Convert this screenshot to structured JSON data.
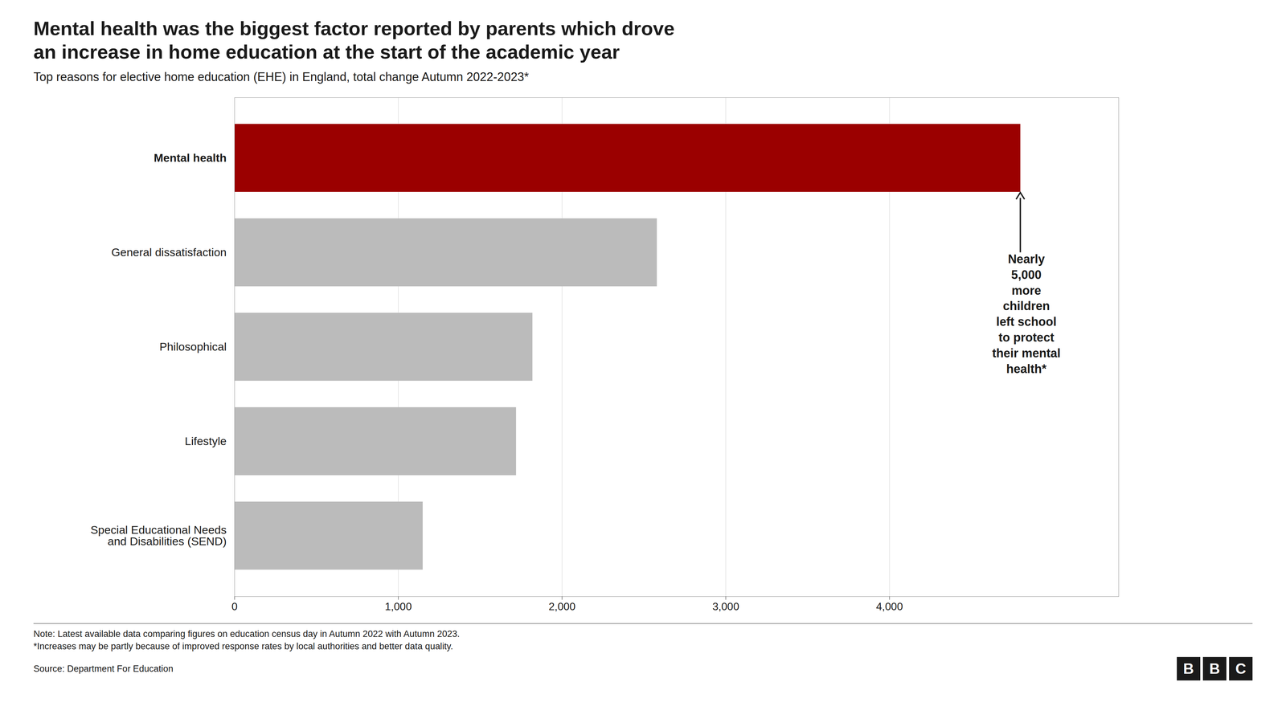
{
  "chart_data": {
    "type": "bar",
    "orientation": "horizontal",
    "title": "Mental health was the biggest factor reported by parents which drove\nan increase in home education at the start of the academic year",
    "subtitle": "Top reasons for elective home education (EHE) in England, total change Autumn 2022-2023*",
    "categories": [
      "Mental health",
      "General dissatisfaction",
      "Philosophical",
      "Lifestyle",
      "Special Educational Needs\nand Disabilities (SEND)"
    ],
    "values": [
      4800,
      2580,
      1820,
      1720,
      1150
    ],
    "colors": [
      "#9B0000",
      "#BBBBBB",
      "#BBBBBB",
      "#BBBBBB",
      "#BBBBBB"
    ],
    "xlim": [
      0,
      5400
    ],
    "xticks": [
      0,
      {
        "value": 1000,
        "label": "1,000"
      },
      {
        "value": 2000,
        "label": "2,000"
      },
      {
        "value": 3000,
        "label": "3,000"
      },
      {
        "value": 4000,
        "label": "4,000"
      }
    ],
    "grid": true,
    "annotations": [
      {
        "text": "Nearly\n5,000\nmore\nchildren\nleft school\nto protect\ntheir mental\nhealth*",
        "category": "Mental health"
      }
    ],
    "notes": [
      "Note: Latest available data comparing figures on education census day in Autumn 2022 with Autumn 2023.",
      "*Increases may be partly because of improved response rates by local authorities and better data quality."
    ],
    "source": "Source: Department For Education",
    "logo": "BBC"
  }
}
